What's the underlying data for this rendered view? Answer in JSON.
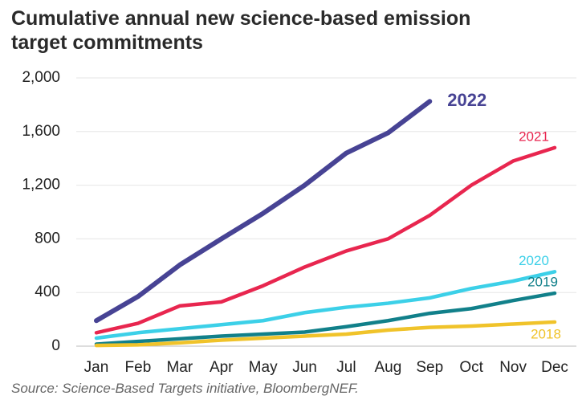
{
  "chart_data": {
    "type": "line",
    "title": "Cumulative annual new science-based emission target commitments",
    "source": "Source: Science-Based Targets initiative, BloombergNEF.",
    "categories": [
      "Jan",
      "Feb",
      "Mar",
      "Apr",
      "May",
      "Jun",
      "Jul",
      "Aug",
      "Sep",
      "Oct",
      "Nov",
      "Dec"
    ],
    "ylim": [
      0,
      2000
    ],
    "yticks": [
      0,
      400,
      800,
      {
        "value": 1200,
        "label": "1,200"
      },
      {
        "value": 1600,
        "label": "1,600"
      },
      {
        "value": 2000,
        "label": "2,000"
      }
    ],
    "grid": true,
    "series": [
      {
        "name": "2022",
        "color": "#474394",
        "values": [
          190,
          370,
          605,
          800,
          990,
          1200,
          1440,
          1590,
          1825,
          null,
          null,
          null
        ]
      },
      {
        "name": "2021",
        "color": "#e8264f",
        "values": [
          100,
          170,
          300,
          330,
          450,
          590,
          710,
          800,
          975,
          1200,
          1380,
          1480
        ]
      },
      {
        "name": "2020",
        "color": "#3cd0e8",
        "values": [
          60,
          100,
          130,
          160,
          190,
          250,
          290,
          320,
          360,
          430,
          485,
          555
        ]
      },
      {
        "name": "2019",
        "color": "#11808a",
        "values": [
          15,
          35,
          55,
          75,
          90,
          105,
          145,
          190,
          245,
          280,
          340,
          395
        ]
      },
      {
        "name": "2018",
        "color": "#f0c32a",
        "values": [
          5,
          10,
          25,
          45,
          60,
          75,
          90,
          120,
          140,
          150,
          165,
          180
        ]
      }
    ]
  }
}
